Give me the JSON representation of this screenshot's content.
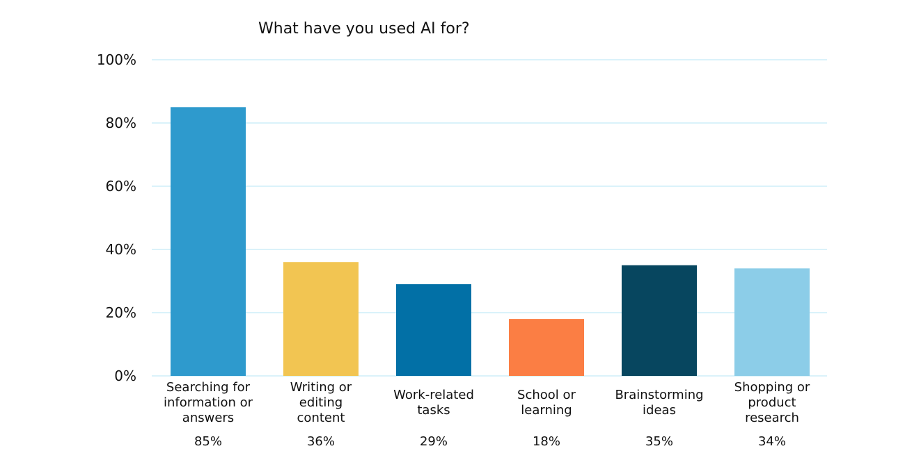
{
  "chart_data": {
    "type": "bar",
    "title": "What have you used AI for?",
    "xlabel": "",
    "ylabel": "",
    "ylim": [
      0,
      100
    ],
    "y_ticks": [
      "0%",
      "20%",
      "40%",
      "60%",
      "80%",
      "100%"
    ],
    "y_tick_values": [
      0,
      20,
      40,
      60,
      80,
      100
    ],
    "grid": true,
    "legend": "none",
    "categories": [
      "Searching for information or answers",
      "Writing or editing content",
      "Work-related tasks",
      "School or learning",
      "Brainstorming ideas",
      "Shopping or product research"
    ],
    "category_label_lines": [
      [
        "Searching for",
        "information or",
        "answers"
      ],
      [
        "Writing or",
        "editing",
        "content"
      ],
      [
        "Work-related",
        "tasks"
      ],
      [
        "School or",
        "learning"
      ],
      [
        "Brainstorming",
        "ideas"
      ],
      [
        "Shopping or",
        "product",
        "research"
      ]
    ],
    "values": [
      85,
      36,
      29,
      18,
      35,
      34
    ],
    "value_labels": [
      "85%",
      "36%",
      "29%",
      "18%",
      "35%",
      "34%"
    ],
    "colors": [
      "#2e9acd",
      "#f2c552",
      "#0270a6",
      "#fb7e44",
      "#07465f",
      "#8ccde8"
    ]
  }
}
